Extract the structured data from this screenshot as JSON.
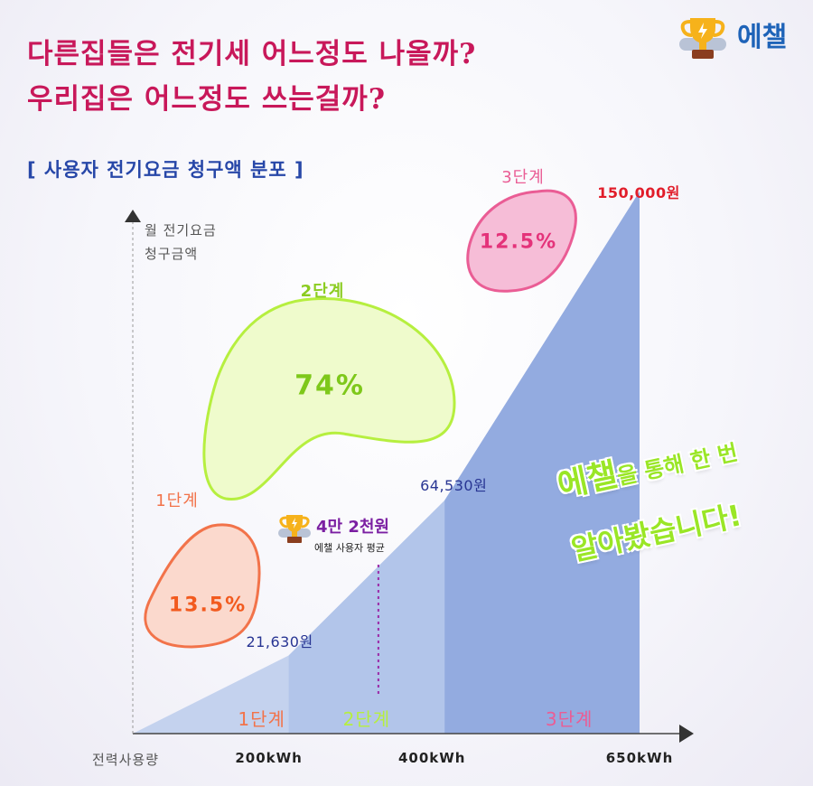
{
  "header": {
    "headline_line1": "다른집들은 전기세 어느정도 나올까?",
    "headline_line2": "우리집은 어느정도 쓰는걸까?",
    "logo_text": "에챌",
    "logo_icon": "trophy-icon"
  },
  "chart_title": "[ 사용자 전기요금 청구액 분포 ]",
  "colors": {
    "headline": "#c8185a",
    "subtitle": "#2747a8",
    "tier1": "#f2734a",
    "tier2": "#b6ef3f",
    "tier3": "#ea5d95",
    "bar": "#8aa6de",
    "promo": "#9ae626",
    "average": "#7b1fa2"
  },
  "chart_data": {
    "type": "area",
    "title": "[ 사용자 전기요금 청구액 분포 ]",
    "ylabel_line1": "월 전기요금",
    "ylabel_line2": "청구금액",
    "xlabel": "전력사용량",
    "x_unit": "kWh",
    "x_ticks": [
      "200kWh",
      "400kWh",
      "650kWh"
    ],
    "xlim": [
      0,
      650
    ],
    "ylim": [
      0,
      150000
    ],
    "points": [
      {
        "kwh": 0,
        "won": 0
      },
      {
        "kwh": 200,
        "won": 21630,
        "label": "21,630원"
      },
      {
        "kwh": 400,
        "won": 64530,
        "label": "64,530원"
      },
      {
        "kwh": 650,
        "won": 150000,
        "label": "150,000원"
      }
    ],
    "tiers": [
      {
        "name": "1단계",
        "from_kwh": 0,
        "to_kwh": 200,
        "share": "13.5%",
        "share_value": 13.5
      },
      {
        "name": "2단계",
        "from_kwh": 200,
        "to_kwh": 400,
        "share": "74%",
        "share_value": 74
      },
      {
        "name": "3단계",
        "from_kwh": 400,
        "to_kwh": 650,
        "share": "12.5%",
        "share_value": 12.5
      }
    ],
    "average": {
      "label": "4만 2천원",
      "sublabel": "에챌 사용자 평균",
      "kwh": 315,
      "won": 42000
    }
  },
  "promo": {
    "line1_brand": "에챌",
    "line1_rest": "을 통해 한 번",
    "line2": "알아봤습니다!"
  }
}
